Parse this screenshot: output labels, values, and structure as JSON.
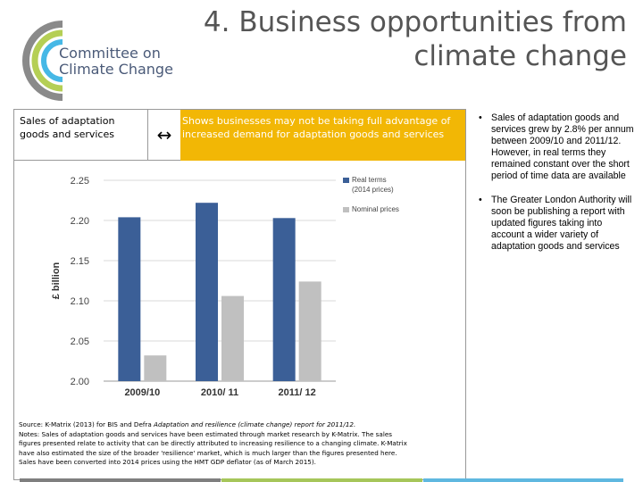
{
  "logo": {
    "line1": "Committee on",
    "line2": "Climate Change"
  },
  "title": "4. Business opportunities from climate change",
  "panel": {
    "header_left": "Sales of adaptation goods and services",
    "arrow": "↔",
    "header_right": "Shows businesses may not be taking full advantage of increased demand for adaptation goods and services"
  },
  "chart_data": {
    "type": "bar",
    "categories": [
      "2009/10",
      "2010/ 11",
      "2011/ 12"
    ],
    "series": [
      {
        "name": "Real terms (2014 prices)",
        "values": [
          2.204,
          2.222,
          2.203
        ],
        "color": "#3b5f97"
      },
      {
        "name": "Nominal prices",
        "values": [
          2.032,
          2.106,
          2.124
        ],
        "color": "#c0c0c0"
      }
    ],
    "xlabel": "",
    "ylabel": "£ billion",
    "ylim": [
      2.0,
      2.25
    ],
    "yticks": [
      "2.00",
      "2.05",
      "2.10",
      "2.15",
      "2.20",
      "2.25"
    ],
    "grid": true,
    "legend": "top-right",
    "legend_lines": [
      [
        "Real terms",
        "(2014 prices)"
      ],
      [
        "Nominal prices"
      ]
    ]
  },
  "source": {
    "line1_pre": "Source: K-Matrix (2013) for BIS and Defra ",
    "line1_italic": "Adaptation and resilience (climate change) report for 2011/12.",
    "line2": "Notes: Sales of adaptation goods and services have been estimated through market research by K-Matrix. The sales",
    "line3": "figures presented relate to activity that can be directly attributed to increasing resilience to a changing climate. K-Matrix",
    "line4": "have also estimated the size of the broader 'resilience' market, which is much larger than the figures presented here.",
    "line5": "Sales have been converted into 2014 prices using the HMT GDP deflator (as of March 2015)."
  },
  "bullets": [
    "Sales of adaptation goods and services grew by 2.8% per annum between 2009/10 and 2011/12. However, in real terms they remained constant over the short period of time data are available",
    "The Greater London Authority will soon be publishing a report with updated figures taking into account a wider variety of adaptation goods and services"
  ],
  "bullet_symbol": "•",
  "colors": {
    "accent": "#f2b705",
    "footer": [
      "#7f7f7f",
      "#a6c65a",
      "#5fb8e0"
    ]
  }
}
